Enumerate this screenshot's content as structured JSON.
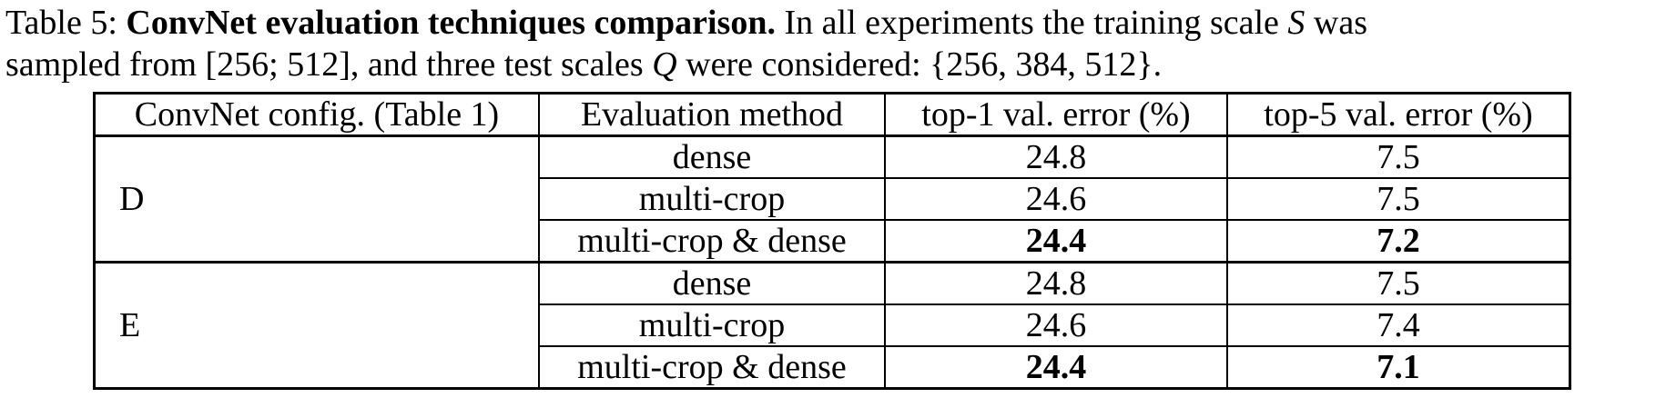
{
  "caption": {
    "label": "Table 5:",
    "title": "ConvNet evaluation techniques comparison.",
    "line1_rest_a": "In all experiments the training scale",
    "var_s": "S",
    "line1_rest_b": "was",
    "line2_a": "sampled from",
    "range": "[256; 512]",
    "line2_b": ", and three test scales",
    "var_q": "Q",
    "line2_c": "were considered:",
    "set": "{256, 384, 512}",
    "line2_end": "."
  },
  "table": {
    "headers": [
      "ConvNet config. (Table 1)",
      "Evaluation method",
      "top-1 val. error (%)",
      "top-5 val. error (%)"
    ],
    "groups": [
      {
        "config": "D",
        "rows": [
          {
            "method": "dense",
            "top1": "24.8",
            "top5": "7.5",
            "best_top1": false,
            "best_top5": false
          },
          {
            "method": "multi-crop",
            "top1": "24.6",
            "top5": "7.5",
            "best_top1": false,
            "best_top5": false
          },
          {
            "method": "multi-crop & dense",
            "top1": "24.4",
            "top5": "7.2",
            "best_top1": true,
            "best_top5": true
          }
        ]
      },
      {
        "config": "E",
        "rows": [
          {
            "method": "dense",
            "top1": "24.8",
            "top5": "7.5",
            "best_top1": false,
            "best_top5": false
          },
          {
            "method": "multi-crop",
            "top1": "24.6",
            "top5": "7.4",
            "best_top1": false,
            "best_top5": false
          },
          {
            "method": "multi-crop & dense",
            "top1": "24.4",
            "top5": "7.1",
            "best_top1": true,
            "best_top5": true
          }
        ]
      }
    ]
  }
}
